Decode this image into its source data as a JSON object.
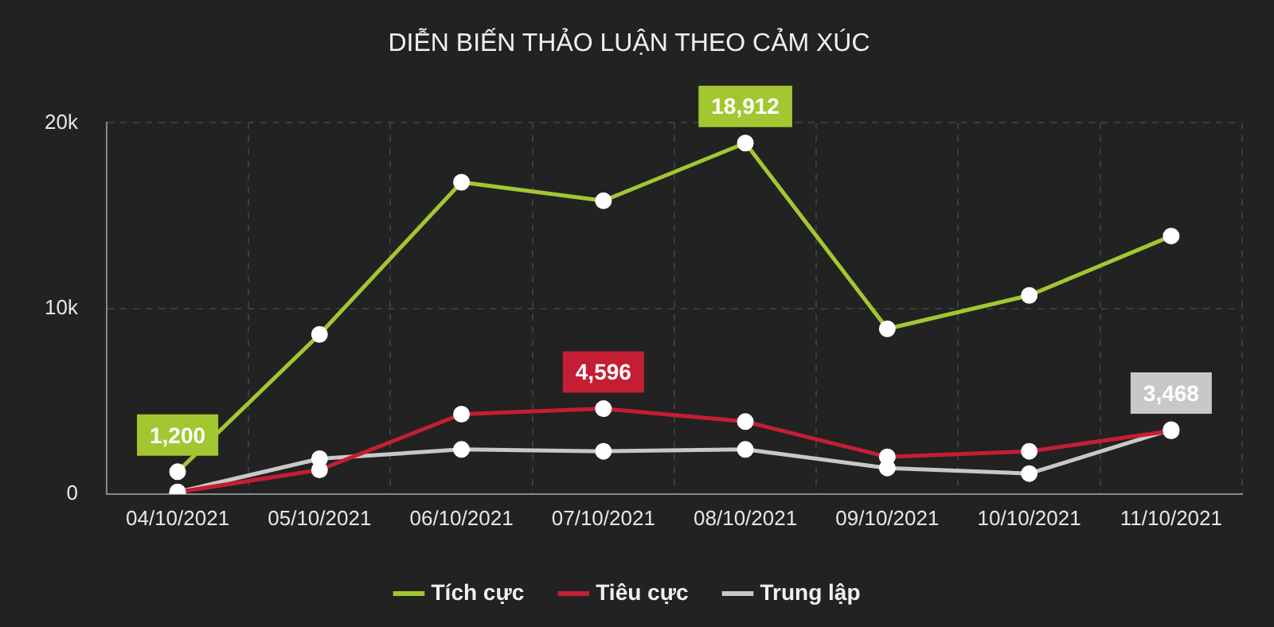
{
  "chart_data": {
    "type": "line",
    "title": "DIỄN BIẾN THẢO LUẬN THEO CẢM XÚC",
    "categories": [
      "04/10/2021",
      "05/10/2021",
      "06/10/2021",
      "07/10/2021",
      "08/10/2021",
      "09/10/2021",
      "10/10/2021",
      "11/10/2021"
    ],
    "series": [
      {
        "name": "Tích cực",
        "color": "#a2c731",
        "values": [
          1200,
          8600,
          16800,
          15800,
          18912,
          8900,
          10700,
          13900
        ],
        "value_labels": [
          "1,200",
          null,
          null,
          null,
          "18,912",
          null,
          null,
          null
        ]
      },
      {
        "name": "Tiêu cực",
        "color": "#c41e35",
        "values": [
          100,
          1300,
          4300,
          4596,
          3900,
          2000,
          2300,
          3400
        ],
        "value_labels": [
          null,
          null,
          null,
          "4,596",
          null,
          null,
          null,
          null
        ]
      },
      {
        "name": "Trung lập",
        "color": "#c8c8c8",
        "values": [
          100,
          1900,
          2400,
          2300,
          2400,
          1400,
          1100,
          3468
        ],
        "value_labels": [
          null,
          null,
          null,
          null,
          null,
          null,
          null,
          "3,468"
        ]
      }
    ],
    "ylim": [
      0,
      20000
    ],
    "yticks": [
      0,
      {
        "value": 10000,
        "label": "10k"
      },
      {
        "value": 20000,
        "label": "20k"
      }
    ],
    "grid": true,
    "legend": "bottom",
    "marker": "circle",
    "line_style": "solid"
  }
}
